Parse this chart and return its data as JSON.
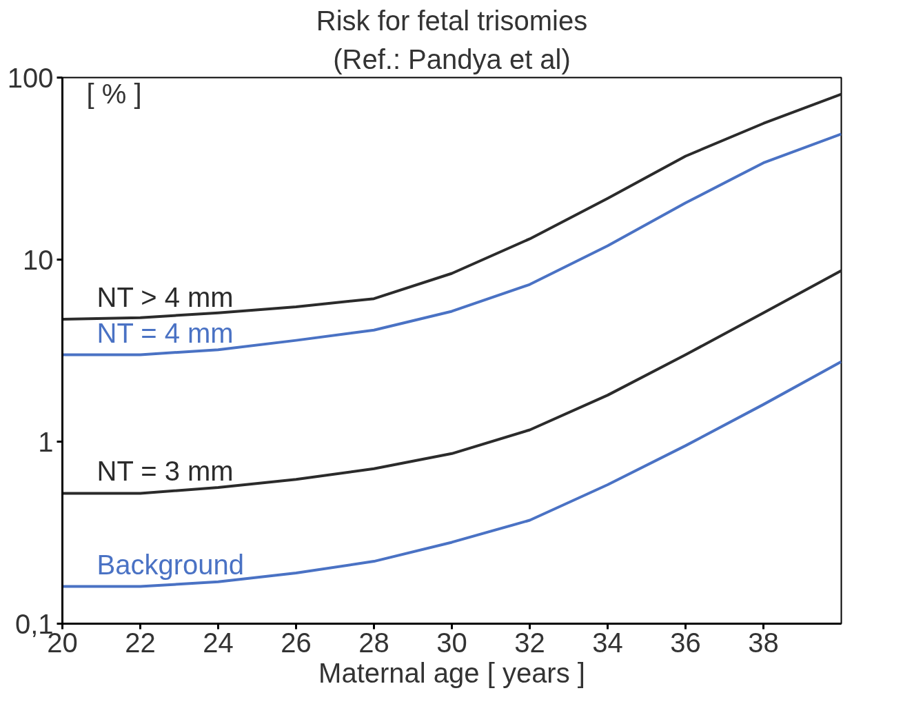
{
  "chart_data": {
    "type": "line",
    "title": "Risk for fetal trisomies",
    "subtitle": "(Ref.: Pandya et al)",
    "xlabel": "Maternal age [ years ]",
    "ylabel": "[ % ]",
    "x": [
      20,
      22,
      24,
      26,
      28,
      30,
      32,
      34,
      36,
      38,
      40
    ],
    "series": [
      {
        "name": "NT > 4 mm",
        "color": "#2b2b2b",
        "values": [
          4.7,
          4.8,
          5.1,
          5.5,
          6.1,
          8.4,
          13,
          21.7,
          37,
          56,
          81
        ]
      },
      {
        "name": "NT = 4 mm",
        "color": "#4a72c4",
        "values": [
          3.0,
          3.0,
          3.2,
          3.6,
          4.1,
          5.2,
          7.3,
          11.9,
          20.5,
          34,
          49
        ]
      },
      {
        "name": "NT = 3 mm",
        "color": "#2b2b2b",
        "values": [
          0.52,
          0.52,
          0.56,
          0.62,
          0.71,
          0.86,
          1.16,
          1.8,
          3.0,
          5.1,
          8.7
        ]
      },
      {
        "name": "Background",
        "color": "#4a72c4",
        "values": [
          0.16,
          0.16,
          0.17,
          0.19,
          0.22,
          0.28,
          0.37,
          0.58,
          0.95,
          1.6,
          2.75
        ]
      }
    ],
    "log": "y",
    "xlim": [
      20,
      40
    ],
    "ylim": [
      0.1,
      100
    ],
    "xticks": [
      20,
      22,
      24,
      26,
      28,
      30,
      32,
      34,
      36,
      38
    ],
    "yticks": [
      {
        "value": 0.1,
        "label": "0,1"
      },
      1,
      10,
      100
    ],
    "grid": false,
    "marker": "none",
    "line_style": "solid"
  }
}
